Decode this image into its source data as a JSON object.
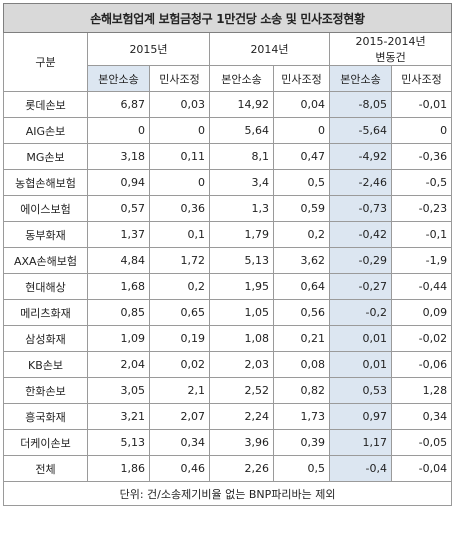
{
  "title": "손해보험업계 보험금청구 1만건당 소송 및 민사조정현황",
  "header": {
    "group_label": "구분",
    "col_2015": "2015년",
    "col_2014": "2014년",
    "col_diff_line1": "2015-2014년",
    "col_diff_line2": "변동건",
    "sub": [
      "본안소송",
      "민사조정",
      "본안소송",
      "민사조정",
      "본안소송",
      "민사조정"
    ]
  },
  "rows": [
    {
      "name": "롯데손보",
      "v": [
        "6,87",
        "0,03",
        "14,92",
        "0,04",
        "-8,05",
        "-0,01"
      ]
    },
    {
      "name": "AIG손보",
      "v": [
        "0",
        "0",
        "5,64",
        "0",
        "-5,64",
        "0"
      ]
    },
    {
      "name": "MG손보",
      "v": [
        "3,18",
        "0,11",
        "8,1",
        "0,47",
        "-4,92",
        "-0,36"
      ]
    },
    {
      "name": "농협손해보험",
      "v": [
        "0,94",
        "0",
        "3,4",
        "0,5",
        "-2,46",
        "-0,5"
      ]
    },
    {
      "name": "에이스보험",
      "v": [
        "0,57",
        "0,36",
        "1,3",
        "0,59",
        "-0,73",
        "-0,23"
      ]
    },
    {
      "name": "동부화재",
      "v": [
        "1,37",
        "0,1",
        "1,79",
        "0,2",
        "-0,42",
        "-0,1"
      ]
    },
    {
      "name": "AXA손해보험",
      "v": [
        "4,84",
        "1,72",
        "5,13",
        "3,62",
        "-0,29",
        "-1,9"
      ]
    },
    {
      "name": "현대해상",
      "v": [
        "1,68",
        "0,2",
        "1,95",
        "0,64",
        "-0,27",
        "-0,44"
      ]
    },
    {
      "name": "메리츠화재",
      "v": [
        "0,85",
        "0,65",
        "1,05",
        "0,56",
        "-0,2",
        "0,09"
      ]
    },
    {
      "name": "삼성화재",
      "v": [
        "1,09",
        "0,19",
        "1,08",
        "0,21",
        "0,01",
        "-0,02"
      ]
    },
    {
      "name": "KB손보",
      "v": [
        "2,04",
        "0,02",
        "2,03",
        "0,08",
        "0,01",
        "-0,06"
      ]
    },
    {
      "name": "한화손보",
      "v": [
        "3,05",
        "2,1",
        "2,52",
        "0,82",
        "0,53",
        "1,28"
      ]
    },
    {
      "name": "흥국화재",
      "v": [
        "3,21",
        "2,07",
        "2,24",
        "1,73",
        "0,97",
        "0,34"
      ]
    },
    {
      "name": "더케이손보",
      "v": [
        "5,13",
        "0,34",
        "3,96",
        "0,39",
        "1,17",
        "-0,05"
      ]
    },
    {
      "name": "전체",
      "v": [
        "1,86",
        "0,46",
        "2,26",
        "0,5",
        "-0,4",
        "-0,04"
      ]
    }
  ],
  "footer": "단위: 건/소송제기비율 없는 BNP파리바는 제외"
}
